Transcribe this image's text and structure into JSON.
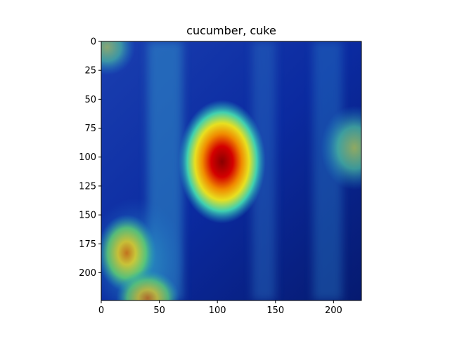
{
  "chart_data": {
    "type": "heatmap",
    "title": "cucumber, cuke",
    "xlabel": "",
    "ylabel": "",
    "xlim": [
      0,
      224
    ],
    "ylim": [
      224,
      0
    ],
    "x_ticks": [
      "0",
      "50",
      "100",
      "150",
      "200"
    ],
    "y_ticks": [
      "0",
      "25",
      "50",
      "75",
      "100",
      "125",
      "150",
      "175",
      "200"
    ],
    "grid": false,
    "colormap": "jet",
    "hotspots": [
      {
        "x": 104,
        "y": 104,
        "intensity": 1.0
      },
      {
        "x": 22,
        "y": 183,
        "intensity": 0.75
      },
      {
        "x": 218,
        "y": 92,
        "intensity": 0.55
      },
      {
        "x": 5,
        "y": 5,
        "intensity": 0.45
      },
      {
        "x": 40,
        "y": 222,
        "intensity": 0.6
      }
    ],
    "background_color": "#0a2a9a"
  }
}
